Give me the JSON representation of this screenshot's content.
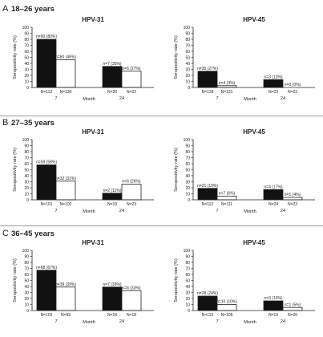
{
  "colors": {
    "bar_7": "#111111",
    "bar_24": "#ffffff",
    "outline": "#222222",
    "separator": "#9a9a9a"
  },
  "chart_data": [
    {
      "type": "bar",
      "panel": "A",
      "age_group": "18–26 years",
      "title": "HPV-31",
      "ylabel": "Seropositivity rate (%)",
      "xlabel": "Month",
      "ylim": [
        0,
        100
      ],
      "yticks": [
        0,
        10,
        20,
        30,
        40,
        50,
        60,
        70,
        80,
        90,
        100
      ],
      "categories": [
        "7",
        "24"
      ],
      "bars": [
        {
          "value": 80,
          "label": "n=90 (80%)",
          "n": "N=112",
          "fill": "dark"
        },
        {
          "value": 46,
          "label": "n=60 (46%)",
          "n": "N=130",
          "fill": "white"
        },
        {
          "value": 35,
          "label": "n=7 (35%)",
          "n": "N=20",
          "fill": "dark"
        },
        {
          "value": 27,
          "label": "n=6 (27%)",
          "n": "N=22",
          "fill": "white"
        }
      ]
    },
    {
      "type": "bar",
      "panel": "A",
      "title": "HPV-45",
      "ylabel": "Seropositivity rate (%)",
      "xlabel": "Month",
      "ylim": [
        0,
        100
      ],
      "yticks": [
        0,
        10,
        20,
        30,
        40,
        50,
        60,
        70,
        80,
        90,
        100
      ],
      "categories": [
        "7",
        "24"
      ],
      "bars": [
        {
          "value": 27,
          "label": "n=35 (27%)",
          "n": "N=128",
          "fill": "dark"
        },
        {
          "value": 3,
          "label": "n=4 (3%)",
          "n": "N=131",
          "fill": "white"
        },
        {
          "value": 13,
          "label": "n=3 (13%)",
          "n": "N=23",
          "fill": "dark"
        },
        {
          "value": 0,
          "label": "n=0 (0%)",
          "n": "N=22",
          "fill": "white"
        }
      ]
    },
    {
      "type": "bar",
      "panel": "B",
      "age_group": "27–35 years",
      "title": "HPV-31",
      "ylabel": "Seropositivity rate (%)",
      "xlabel": "Month",
      "ylim": [
        0,
        100
      ],
      "yticks": [
        0,
        10,
        20,
        30,
        40,
        50,
        60,
        70,
        80,
        90,
        100
      ],
      "categories": [
        "7",
        "24"
      ],
      "bars": [
        {
          "value": 58,
          "label": "n=59 (58%)",
          "n": "N=101",
          "fill": "dark"
        },
        {
          "value": 31,
          "label": "n=32 (31%)",
          "n": "N=102",
          "fill": "white"
        },
        {
          "value": 11,
          "label": "n=2 (11%)",
          "n": "N=19",
          "fill": "dark"
        },
        {
          "value": 26,
          "label": "n=6 (26%)",
          "n": "N=23",
          "fill": "white"
        }
      ]
    },
    {
      "type": "bar",
      "panel": "B",
      "title": "HPV-45",
      "ylabel": "Seropositivity rate (%)",
      "xlabel": "Month",
      "ylim": [
        0,
        100
      ],
      "yticks": [
        0,
        10,
        20,
        30,
        40,
        50,
        60,
        70,
        80,
        90,
        100
      ],
      "categories": [
        "7",
        "24"
      ],
      "bars": [
        {
          "value": 19,
          "label": "n=21 (19%)",
          "n": "N=112",
          "fill": "dark"
        },
        {
          "value": 6,
          "label": "n=7 (6%)",
          "n": "N=111",
          "fill": "white"
        },
        {
          "value": 17,
          "label": "n=4 (17%)",
          "n": "N=24",
          "fill": "dark"
        },
        {
          "value": 4,
          "label": "n=1 (4%)",
          "n": "N=23",
          "fill": "white"
        }
      ]
    },
    {
      "type": "bar",
      "panel": "C",
      "age_group": "36–45 years",
      "title": "HPV-31",
      "ylabel": "Seropositivity rate (%)",
      "xlabel": "Month",
      "ylim": [
        0,
        100
      ],
      "yticks": [
        0,
        10,
        20,
        30,
        40,
        50,
        60,
        70,
        80,
        90,
        100
      ],
      "categories": [
        "7",
        "24"
      ],
      "bars": [
        {
          "value": 67,
          "label": "n=68 (67%)",
          "n": "N=102",
          "fill": "dark"
        },
        {
          "value": 39,
          "label": "n=39 (39%)",
          "n": "N=99",
          "fill": "white"
        },
        {
          "value": 39,
          "label": "n=7 (39%)",
          "n": "N=18",
          "fill": "dark"
        },
        {
          "value": 33,
          "label": "n=6 (33%)",
          "n": "N=18",
          "fill": "white"
        }
      ]
    },
    {
      "type": "bar",
      "panel": "C",
      "title": "HPV-45",
      "ylabel": "Seropositivity rate (%)",
      "xlabel": "Month",
      "ylim": [
        0,
        100
      ],
      "yticks": [
        0,
        10,
        20,
        30,
        40,
        50,
        60,
        70,
        80,
        90,
        100
      ],
      "categories": [
        "7",
        "24"
      ],
      "bars": [
        {
          "value": 24,
          "label": "n=28 (24%)",
          "n": "N=115",
          "fill": "dark"
        },
        {
          "value": 10,
          "label": "n=10 (10%)",
          "n": "N=105",
          "fill": "white"
        },
        {
          "value": 16,
          "label": "n=3 (16%)",
          "n": "N=19",
          "fill": "dark"
        },
        {
          "value": 5,
          "label": "n=1 (5%)",
          "n": "N=20",
          "fill": "white"
        }
      ]
    }
  ]
}
